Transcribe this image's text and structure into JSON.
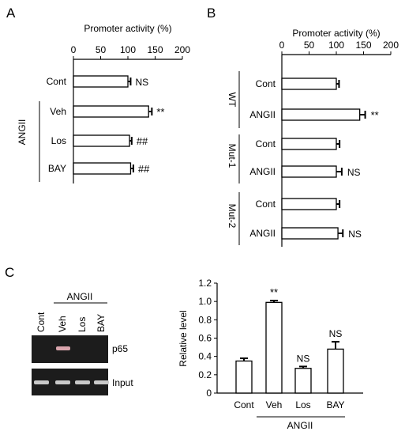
{
  "panels": {
    "a": "A",
    "b": "B",
    "c": "C"
  },
  "chart_data": [
    {
      "id": "A",
      "type": "bar",
      "orientation": "horizontal",
      "xlabel": "Promoter activity (%)",
      "xlim": [
        0,
        200
      ],
      "xticks": [
        0,
        50,
        100,
        150,
        200
      ],
      "categories": [
        "Cont",
        "Veh",
        "Los",
        "BAY"
      ],
      "values": [
        100,
        138,
        103,
        105
      ],
      "errors": [
        5,
        6,
        4,
        5
      ],
      "annotations": [
        "NS",
        "**",
        "##",
        "##"
      ],
      "group_label": "ANGII"
    },
    {
      "id": "B",
      "type": "bar",
      "orientation": "horizontal",
      "xlabel": "Promoter activity (%)",
      "xlim": [
        0,
        200
      ],
      "xticks": [
        0,
        50,
        100,
        150,
        200
      ],
      "categories": [
        "Cont",
        "ANGII",
        "Cont",
        "ANGII",
        "Cont",
        "ANGII"
      ],
      "values": [
        100,
        143,
        100,
        100,
        100,
        103
      ],
      "errors": [
        5,
        10,
        6,
        10,
        6,
        9
      ],
      "annotations": [
        "",
        "**",
        "",
        "NS",
        "",
        "NS"
      ],
      "groups": [
        "WT",
        "Mut-1",
        "Mut-2"
      ]
    },
    {
      "id": "C",
      "type": "bar",
      "ylabel": "Relative level",
      "ylim": [
        0,
        1.2
      ],
      "yticks": [
        "0",
        "0.2",
        "0.4",
        "0.6",
        "0.8",
        "1.0",
        "1.2"
      ],
      "categories": [
        "Cont",
        "Veh",
        "Los",
        "BAY"
      ],
      "values": [
        0.35,
        0.99,
        0.27,
        0.48
      ],
      "errors": [
        0.03,
        0.02,
        0.02,
        0.08
      ],
      "annotations": [
        "",
        "**",
        "NS",
        "NS"
      ],
      "group_label": "ANGII"
    }
  ],
  "gel": {
    "group_label": "ANGII",
    "lanes": [
      "Cont",
      "Veh",
      "Los",
      "BAY"
    ],
    "rows": [
      "p65",
      "Input"
    ],
    "p65_band_visible": [
      false,
      true,
      false,
      false
    ],
    "input_band_visible": [
      true,
      true,
      true,
      true
    ]
  }
}
